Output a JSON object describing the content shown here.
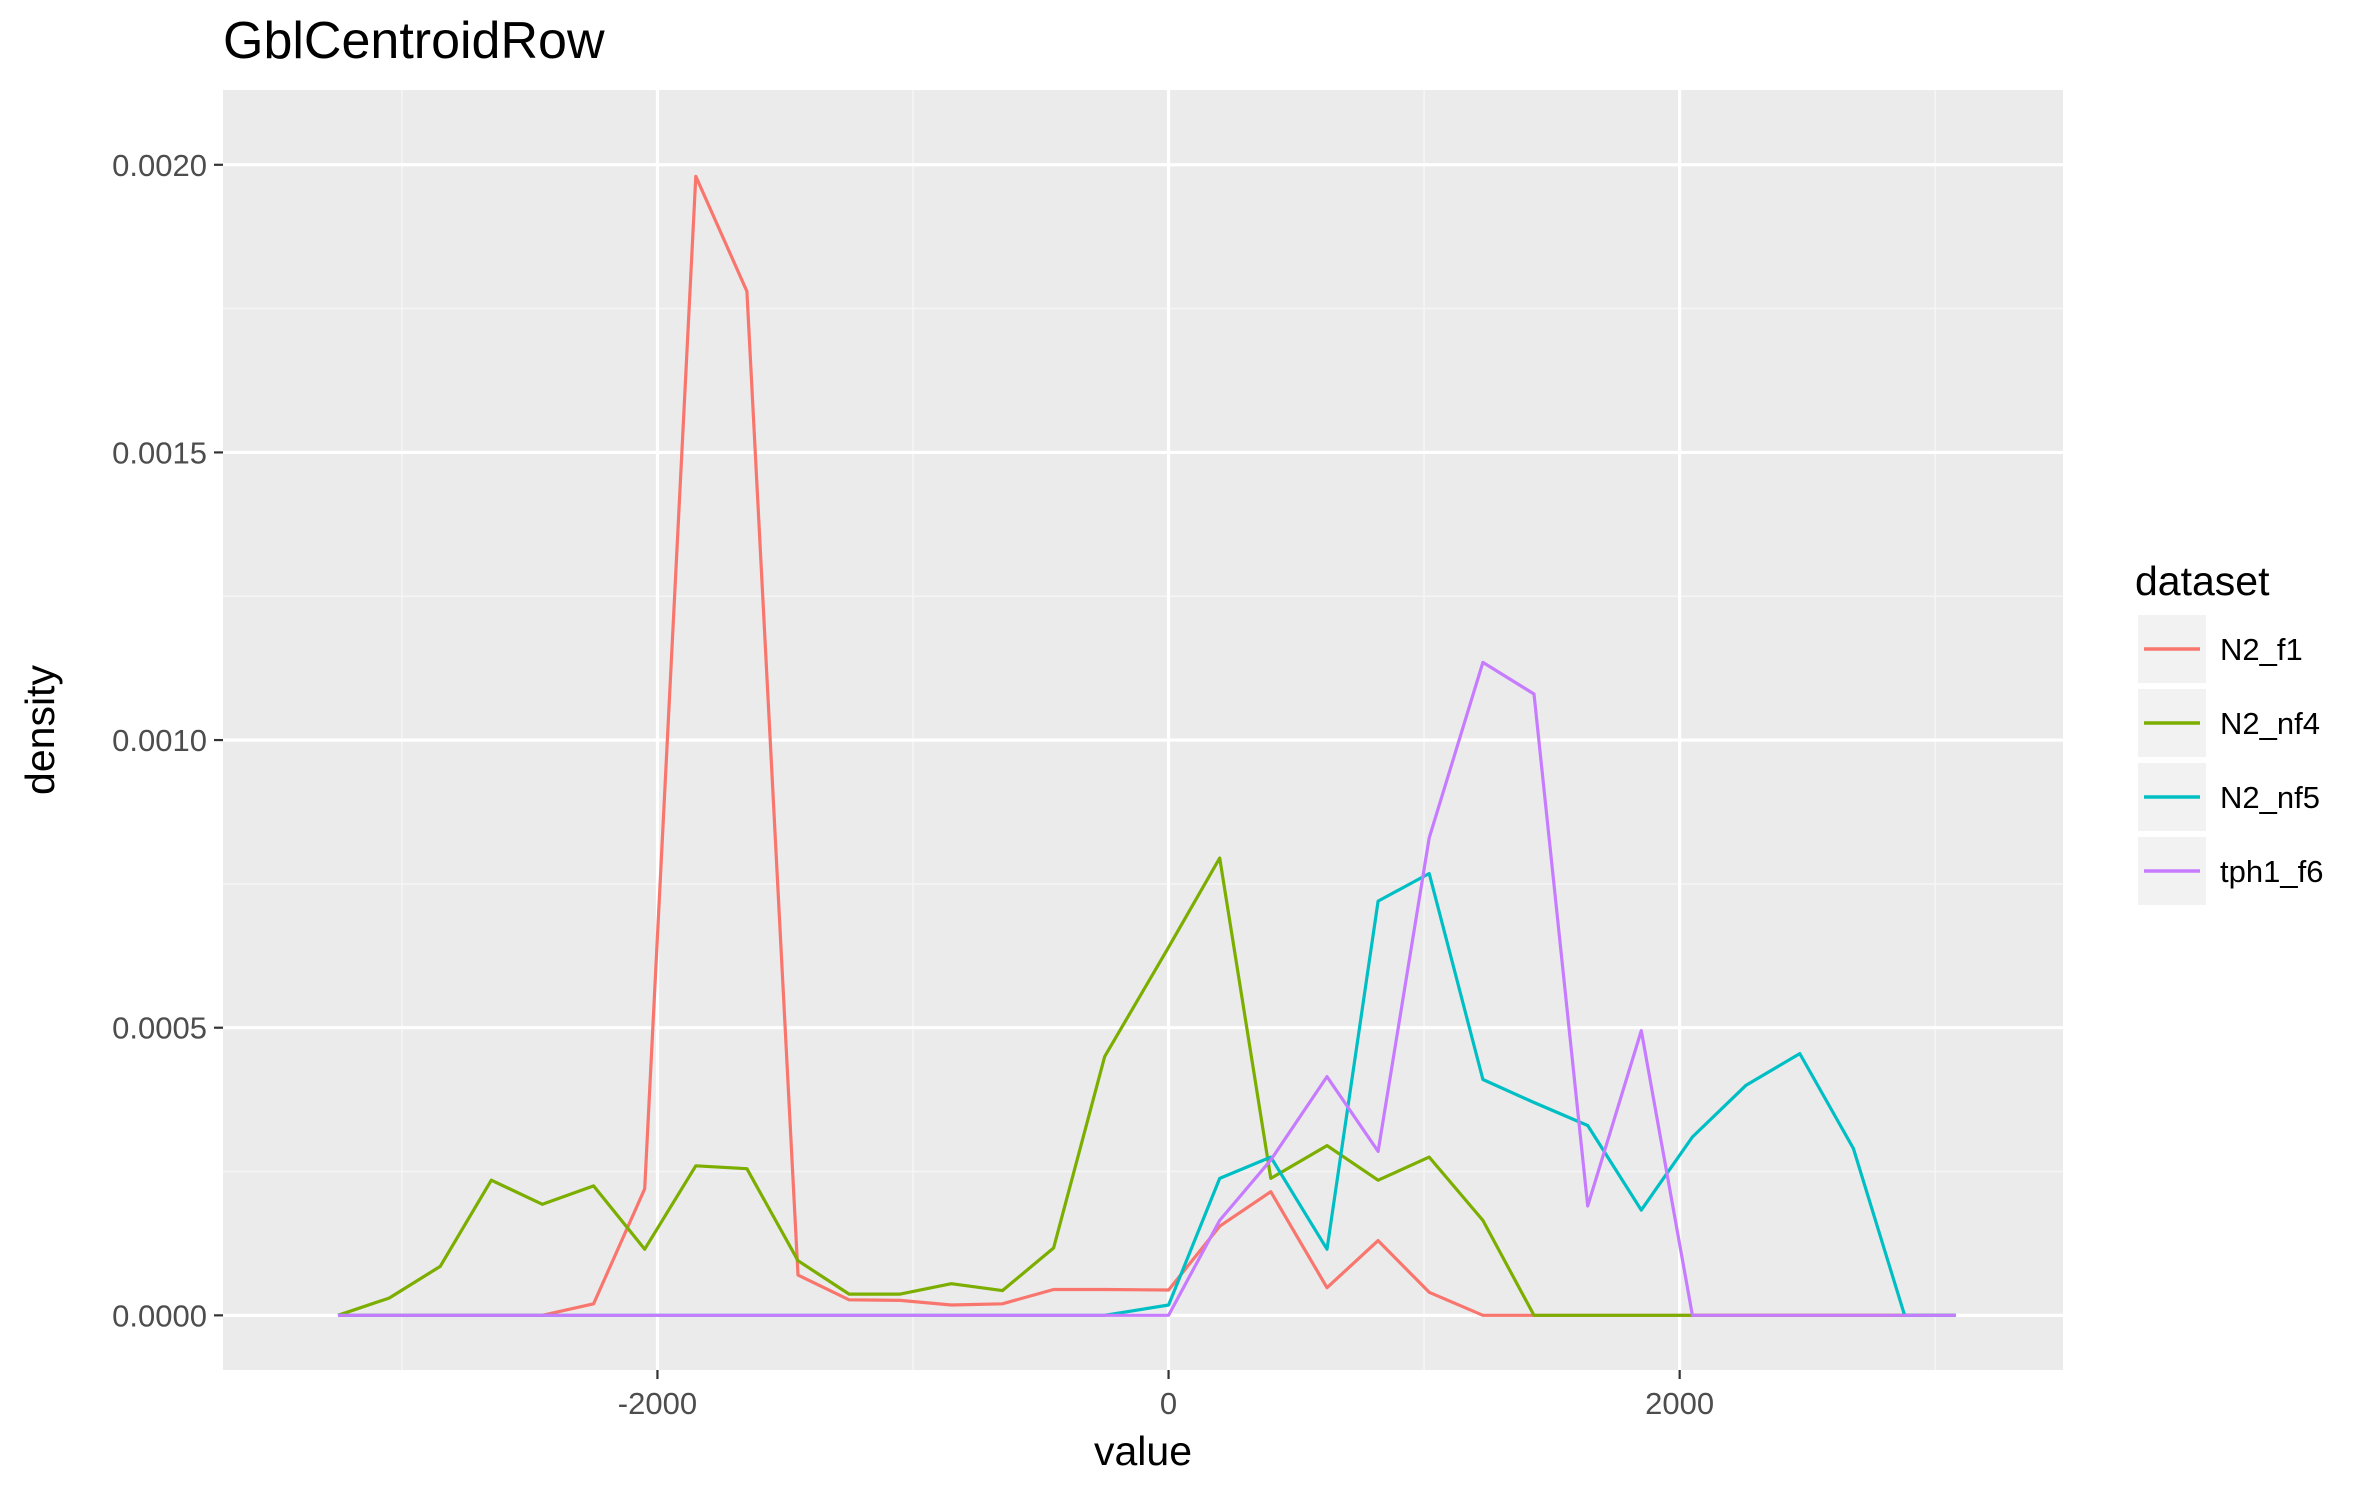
{
  "chart_data": {
    "type": "line",
    "title": "GblCentroidRow",
    "xlabel": "value",
    "ylabel": "density",
    "xlim": [
      -3700,
      3500
    ],
    "ylim": [
      -9.5e-05,
      0.00213
    ],
    "x_ticks": [
      -2000,
      0,
      2000
    ],
    "x_tick_labels": [
      "-2000",
      "0",
      "2000"
    ],
    "x_minor_ticks": [
      -3000,
      -1000,
      1000,
      3000
    ],
    "y_ticks": [
      0,
      0.0005,
      0.001,
      0.0015,
      0.002
    ],
    "y_tick_labels": [
      "0.0000",
      "0.0005",
      "0.0010",
      "0.0015",
      "0.0020"
    ],
    "y_minor_ticks": [
      0.00025,
      0.00075,
      0.00125,
      0.00175
    ],
    "grid": true,
    "legend": {
      "title": "dataset",
      "position": "right"
    },
    "x": [
      -3250,
      -3050,
      -2850,
      -2650,
      -2450,
      -2250,
      -2050,
      -1850,
      -1650,
      -1450,
      -1250,
      -1050,
      -850,
      -650,
      -450,
      -250,
      0,
      200,
      400,
      620,
      820,
      1020,
      1230,
      1430,
      1640,
      1850,
      2050,
      2260,
      2470,
      2680,
      2880,
      3080
    ],
    "series": [
      {
        "name": "N2_f1",
        "color": "#F8766D",
        "values": [
          0,
          0,
          0,
          0,
          0,
          2e-05,
          0.00022,
          0.00198,
          0.00178,
          7e-05,
          2.7e-05,
          2.6e-05,
          1.8e-05,
          2e-05,
          4.5e-05,
          4.5e-05,
          4.4e-05,
          0.000155,
          0.000215,
          4.8e-05,
          0.00013,
          4e-05,
          0,
          0,
          0,
          0,
          0,
          0,
          0,
          0,
          0,
          0
        ]
      },
      {
        "name": "N2_nf4",
        "color": "#7CAE00",
        "values": [
          0,
          3e-05,
          8.5e-05,
          0.000235,
          0.000193,
          0.000225,
          0.000115,
          0.00026,
          0.000255,
          9.5e-05,
          3.7e-05,
          3.7e-05,
          5.5e-05,
          4.3e-05,
          0.000117,
          0.00045,
          0.00064,
          0.000795,
          0.000238,
          0.000295,
          0.000235,
          0.000275,
          0.000165,
          0,
          0,
          0,
          0,
          0,
          0,
          0,
          0,
          0
        ]
      },
      {
        "name": "N2_nf5",
        "color": "#00BFC4",
        "values": [
          0,
          0,
          0,
          0,
          0,
          0,
          0,
          0,
          0,
          0,
          0,
          0,
          0,
          0,
          0,
          0,
          1.8e-05,
          0.000238,
          0.000275,
          0.000115,
          0.00072,
          0.000768,
          0.00041,
          0.00037,
          0.00033,
          0.000183,
          0.00031,
          0.0004,
          0.000455,
          0.00029,
          0,
          0
        ]
      },
      {
        "name": "tph1_f6",
        "color": "#C77CFF",
        "values": [
          0,
          0,
          0,
          0,
          0,
          0,
          0,
          0,
          0,
          0,
          0,
          0,
          0,
          0,
          0,
          0,
          0,
          0.000165,
          0.00027,
          0.000415,
          0.000285,
          0.00083,
          0.001135,
          0.00108,
          0.00019,
          0.000495,
          0,
          0,
          0,
          0,
          0,
          0
        ]
      }
    ]
  }
}
